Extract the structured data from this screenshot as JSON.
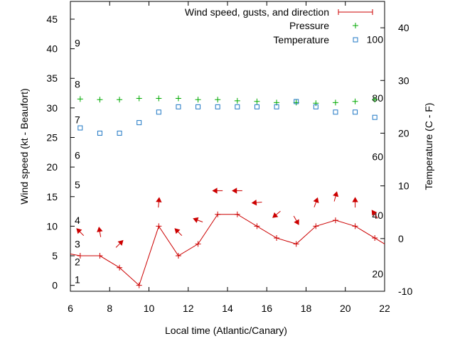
{
  "chart_data": {
    "type": "line",
    "xlabel": "Local time (Atlantic/Canary)",
    "ylabel_left": "Wind speed (kt - Beaufort)",
    "ylabel_right": "Temperature (C - F)",
    "x_range": [
      6,
      22
    ],
    "y_left_range": [
      -1,
      48
    ],
    "y_right_range": [
      -10,
      45
    ],
    "x_ticks": [
      6,
      8,
      10,
      12,
      14,
      16,
      18,
      20,
      22
    ],
    "y_left_ticks": [
      0,
      5,
      10,
      15,
      20,
      25,
      30,
      35,
      40,
      45
    ],
    "y_right_ticks": [
      -10,
      0,
      10,
      20,
      30,
      40
    ],
    "beaufort_labels": [
      {
        "label": "1",
        "y": 1
      },
      {
        "label": "2",
        "y": 4
      },
      {
        "label": "3",
        "y": 7
      },
      {
        "label": "4",
        "y": 11
      },
      {
        "label": "5",
        "y": 17
      },
      {
        "label": "6",
        "y": 22
      },
      {
        "label": "7",
        "y": 28
      },
      {
        "label": "8",
        "y": 34
      },
      {
        "label": "9",
        "y": 41
      }
    ],
    "fahrenheit_labels": [
      {
        "label": "20",
        "f": 20
      },
      {
        "label": "40",
        "f": 40
      },
      {
        "label": "60",
        "f": 60
      },
      {
        "label": "80",
        "f": 80
      },
      {
        "label": "100",
        "f": 100
      }
    ],
    "legend": {
      "position": "top-right",
      "entries": [
        {
          "name": "Wind speed, gusts, and direction",
          "color": "#cc0000"
        },
        {
          "name": "Pressure",
          "color": "#00aa00"
        },
        {
          "name": "Temperature",
          "color": "#1f77c4"
        }
      ]
    },
    "wind_speed": {
      "x": [
        6,
        6.5,
        7.5,
        8.5,
        9.5,
        10.5,
        11.5,
        12.5,
        13.5,
        14.5,
        15.5,
        16.5,
        17.5,
        18.5,
        19.5,
        20.5,
        21.5,
        22
      ],
      "y": [
        5.3,
        5,
        5,
        3,
        0,
        10,
        5,
        7,
        12,
        12,
        10,
        8,
        7,
        10,
        11,
        10,
        8,
        7
      ]
    },
    "wind_direction": {
      "x": [
        6.5,
        7.5,
        8.5,
        10.5,
        11.5,
        12.5,
        13.5,
        14.5,
        15.5,
        16.5,
        17.5,
        18.5,
        19.5,
        20.5,
        21.5
      ],
      "y": [
        9,
        9,
        7,
        14,
        9,
        11,
        16,
        16,
        14,
        12,
        11,
        14,
        15,
        14,
        12
      ],
      "arrow_angle_deg": [
        225,
        260,
        315,
        275,
        225,
        200,
        180,
        180,
        175,
        140,
        60,
        290,
        285,
        270,
        235
      ]
    },
    "pressure": {
      "x": [
        6.5,
        7.5,
        8.5,
        9.5,
        10.5,
        11.5,
        12.5,
        13.5,
        14.5,
        15.5,
        16.5,
        17.5,
        18.5,
        19.5,
        20.5,
        21.5
      ],
      "y": [
        31.5,
        31.4,
        31.4,
        31.6,
        31.6,
        31.6,
        31.4,
        31.4,
        31.2,
        31.1,
        30.9,
        30.9,
        30.8,
        30.9,
        31.1,
        31.4
      ]
    },
    "temperature": {
      "x": [
        6.5,
        7.5,
        8.5,
        9.5,
        10.5,
        11.5,
        12.5,
        13.5,
        14.5,
        15.5,
        16.5,
        17.5,
        18.5,
        19.5,
        20.5,
        21.5
      ],
      "y_celsius": [
        21,
        20,
        20,
        22,
        24,
        25,
        25,
        25,
        25,
        25,
        25,
        26,
        25,
        24,
        24,
        23
      ]
    }
  }
}
